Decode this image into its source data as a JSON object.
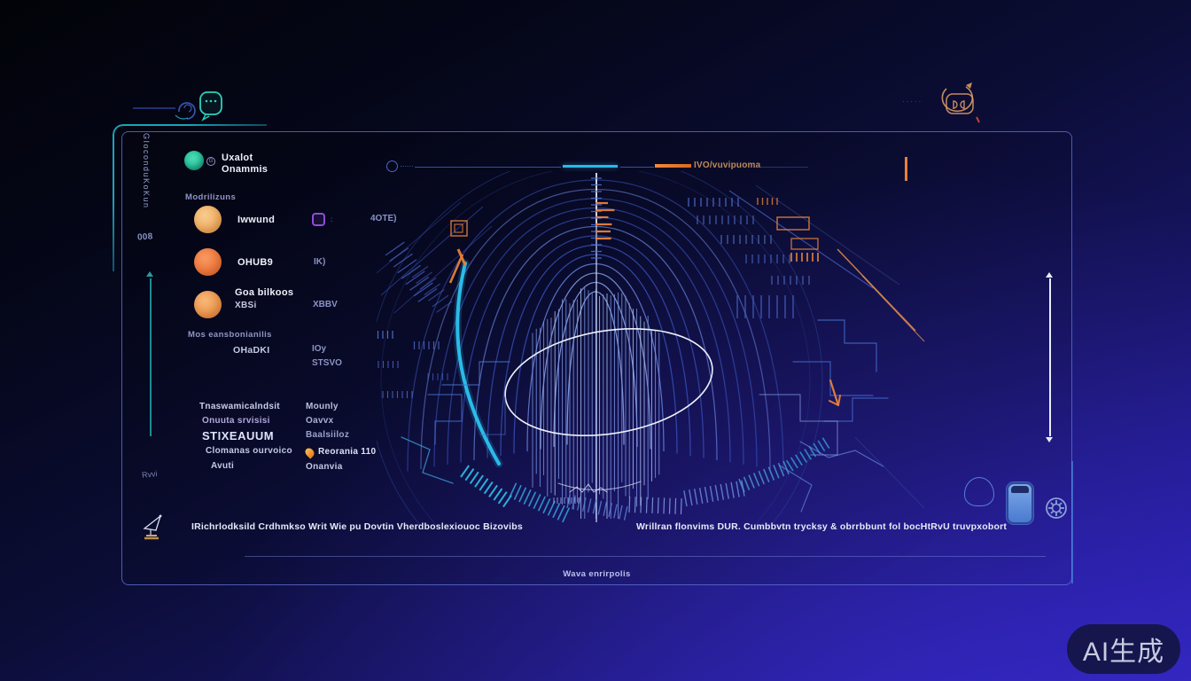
{
  "colors": {
    "accent_cyan": "#2ab9ea",
    "accent_orange": "#e8813a",
    "accent_teal": "#2ec9a5",
    "panel_border": "#5c74d8",
    "background_top": "#020308",
    "background_bottom": "#2d23b4"
  },
  "header": {
    "title_line1": "Uxalot",
    "title_line2": "Onammis",
    "avatar_badge": "G"
  },
  "topbar": {
    "label": "IVO/vuvipuoma",
    "faint_dots": "·····"
  },
  "sidebar": {
    "vertical_label": "GIoconduKoKun",
    "code_label": "008",
    "scroll_label": "Rvvi",
    "section1_title": "Modrilizuns",
    "members": [
      {
        "name": "Iwwund",
        "value": "4OTE)"
      },
      {
        "name": "OHUB9",
        "value": "IK)"
      },
      {
        "name": "Goa bilkoos",
        "sub": "XBSi",
        "value": "XBBV"
      }
    ],
    "section2_title": "Mos eansbonianilis",
    "metric_label": "OHaDKI",
    "metric_value1": "IOy",
    "metric_value2": "STSVO",
    "details_left": [
      "Tnaswamicalndsit",
      "Onuuta srvisisi",
      "STIXEAUUM",
      "Clomanas ourvoico",
      "Avuti"
    ],
    "details_right": [
      "Mounly",
      "Oavvx",
      "Baalsiiloz",
      "Reorania 110",
      "Onanvia"
    ]
  },
  "statusbar": {
    "left_text": "IRichrlodksild Crdhmkso Writ Wie pu   Dovtin   Vherdboslexiouoc Bizovibs",
    "right_text": "Wrillran flonvims  DUR. Cumbbvtn trycksy & obrrbbunt fol bocHtRvU truvpxobort"
  },
  "footer": {
    "center_text": "Wava enrirpolis"
  },
  "watermark": {
    "label": "AI生成"
  }
}
